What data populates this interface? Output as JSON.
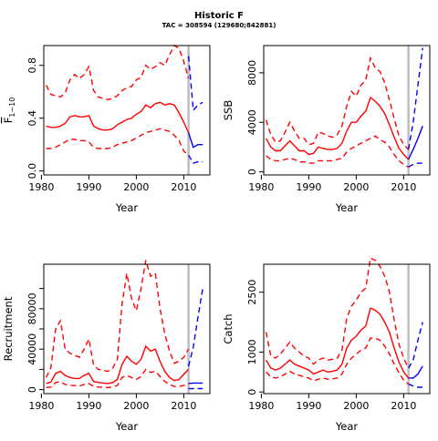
{
  "title": "Historic F",
  "subtitle": "TAC = 308594 (129680;842881)",
  "colors": {
    "historic": "#ff0000",
    "projection": "#0000ff",
    "marker": "#bebebe"
  },
  "chart_data": [
    {
      "type": "line",
      "ylabel": "F̄1–10",
      "ylabel_main": "F",
      "ylabel_sub": "1−10",
      "xlabel": "Year",
      "xlim": [
        1980.5,
        2015.5
      ],
      "ylim": [
        -0.03,
        0.95
      ],
      "xticks": [
        1980,
        1990,
        2000,
        2010
      ],
      "yticks": [
        0.0,
        0.4,
        0.8
      ],
      "ytick_labels": [
        "0.0",
        "0.4",
        "0.8"
      ],
      "marker_year": 2011,
      "historic": {
        "x": [
          1981,
          1982,
          1983,
          1984,
          1985,
          1986,
          1987,
          1988,
          1989,
          1990,
          1991,
          1992,
          1993,
          1994,
          1995,
          1996,
          1997,
          1998,
          1999,
          2000,
          2001,
          2002,
          2003,
          2004,
          2005,
          2006,
          2007,
          2008,
          2009,
          2010,
          2011
        ],
        "mid": [
          0.34,
          0.33,
          0.33,
          0.34,
          0.36,
          0.41,
          0.42,
          0.41,
          0.41,
          0.42,
          0.34,
          0.32,
          0.31,
          0.31,
          0.32,
          0.35,
          0.37,
          0.39,
          0.4,
          0.43,
          0.45,
          0.5,
          0.48,
          0.51,
          0.52,
          0.5,
          0.51,
          0.5,
          0.44,
          0.37,
          0.29
        ],
        "low": [
          0.17,
          0.17,
          0.18,
          0.2,
          0.22,
          0.24,
          0.24,
          0.23,
          0.23,
          0.22,
          0.18,
          0.17,
          0.17,
          0.17,
          0.18,
          0.2,
          0.21,
          0.22,
          0.23,
          0.25,
          0.27,
          0.29,
          0.3,
          0.31,
          0.32,
          0.31,
          0.3,
          0.27,
          0.23,
          0.15,
          0.12
        ],
        "high": [
          0.65,
          0.58,
          0.57,
          0.56,
          0.59,
          0.69,
          0.73,
          0.7,
          0.73,
          0.79,
          0.61,
          0.56,
          0.55,
          0.54,
          0.55,
          0.57,
          0.61,
          0.63,
          0.64,
          0.69,
          0.71,
          0.8,
          0.77,
          0.79,
          0.82,
          0.8,
          0.88,
          0.95,
          0.93,
          0.83,
          0.7
        ]
      },
      "projection": {
        "x": [
          2011,
          2012,
          2013,
          2014
        ],
        "mid": [
          0.29,
          0.18,
          0.2,
          0.2
        ],
        "low": [
          0.12,
          0.06,
          0.07,
          0.07
        ],
        "high": [
          0.87,
          0.46,
          0.5,
          0.52
        ]
      }
    },
    {
      "type": "line",
      "ylabel": "SSB",
      "xlabel": "Year",
      "xlim": [
        1980.5,
        2015.5
      ],
      "ylim": [
        -250,
        10200
      ],
      "xticks": [
        1980,
        1990,
        2000,
        2010
      ],
      "yticks": [
        0,
        4000,
        8000
      ],
      "ytick_labels": [
        "0",
        "4000",
        "8000"
      ],
      "marker_year": 2011,
      "historic": {
        "x": [
          1981,
          1982,
          1983,
          1984,
          1985,
          1986,
          1987,
          1988,
          1989,
          1990,
          1991,
          1992,
          1993,
          1994,
          1995,
          1996,
          1997,
          1998,
          1999,
          2000,
          2001,
          2002,
          2003,
          2004,
          2005,
          2006,
          2007,
          2008,
          2009,
          2010,
          2011
        ],
        "mid": [
          2700,
          2000,
          1700,
          1700,
          2100,
          2500,
          2100,
          1700,
          1700,
          1400,
          1500,
          2000,
          1900,
          1800,
          1800,
          1900,
          2300,
          3300,
          4000,
          4000,
          4500,
          4900,
          6000,
          5700,
          5300,
          4700,
          3800,
          2800,
          1900,
          1400,
          1000
        ],
        "low": [
          1300,
          1000,
          900,
          900,
          1000,
          1100,
          1000,
          800,
          800,
          700,
          700,
          900,
          900,
          900,
          900,
          1000,
          1100,
          1600,
          1900,
          2100,
          2300,
          2500,
          2700,
          2900,
          2600,
          2400,
          2000,
          1400,
          900,
          600,
          400
        ],
        "high": [
          4200,
          3000,
          2400,
          2500,
          3200,
          4000,
          3300,
          2700,
          2700,
          2200,
          2300,
          3200,
          3100,
          2900,
          2800,
          3000,
          3700,
          5300,
          6500,
          6100,
          7000,
          7400,
          9200,
          8400,
          8100,
          7200,
          5800,
          4300,
          2900,
          2200,
          1800
        ]
      },
      "projection": {
        "x": [
          2011,
          2012,
          2013,
          2014
        ],
        "mid": [
          1000,
          1800,
          2700,
          3700
        ],
        "low": [
          400,
          600,
          700,
          700
        ],
        "high": [
          1800,
          4000,
          7000,
          10000
        ]
      }
    },
    {
      "type": "line",
      "ylabel": "Recruitment",
      "xlabel": "Year",
      "xlim": [
        1980.5,
        2015.5
      ],
      "ylim": [
        -4000,
        124000
      ],
      "xticks": [
        1980,
        1990,
        2000,
        2010
      ],
      "yticks": [
        0,
        40000,
        80000
      ],
      "ytick_labels": [
        "0",
        "40000",
        "80000"
      ],
      "yticks_extra": [
        20000,
        60000,
        100000
      ],
      "marker_year": 2011,
      "historic": {
        "x": [
          1981,
          1982,
          1983,
          1984,
          1985,
          1986,
          1987,
          1988,
          1989,
          1990,
          1991,
          1992,
          1993,
          1994,
          1995,
          1996,
          1997,
          1998,
          1999,
          2000,
          2001,
          2002,
          2003,
          2004,
          2005,
          2006,
          2007,
          2008,
          2009,
          2010,
          2011
        ],
        "mid": [
          6000,
          7500,
          16000,
          18000,
          14000,
          12000,
          11000,
          11000,
          14000,
          16000,
          8000,
          7000,
          6500,
          6000,
          7000,
          10000,
          25000,
          33000,
          28000,
          25000,
          30000,
          43000,
          38000,
          40000,
          28000,
          18000,
          12000,
          9000,
          10000,
          15000,
          20000
        ],
        "low": [
          2000,
          2500,
          7000,
          8000,
          5000,
          4000,
          4000,
          3500,
          5000,
          6000,
          3000,
          2500,
          2200,
          2000,
          2500,
          4000,
          12000,
          14000,
          12000,
          10000,
          13000,
          20000,
          17000,
          18000,
          13000,
          8000,
          5000,
          3000,
          3000,
          4000,
          6000
        ],
        "high": [
          12000,
          22000,
          60000,
          68000,
          40000,
          36000,
          34000,
          32000,
          40000,
          50000,
          24000,
          20000,
          19000,
          18000,
          21000,
          30000,
          85000,
          115000,
          90000,
          78000,
          100000,
          128000,
          112000,
          115000,
          80000,
          55000,
          38000,
          26000,
          28000,
          32000,
          40000
        ]
      },
      "projection": {
        "x": [
          2011,
          2012,
          2013,
          2014
        ],
        "mid": [
          6000,
          6500,
          6500,
          6500
        ],
        "low": [
          1000,
          1000,
          1000,
          1000
        ],
        "high": [
          23000,
          42000,
          72000,
          100000
        ]
      }
    },
    {
      "type": "line",
      "ylabel": "Catch",
      "xlabel": "Year",
      "xlim": [
        1980.5,
        2015.5
      ],
      "ylim": [
        -40,
        3200
      ],
      "xticks": [
        1980,
        1990,
        2000,
        2010
      ],
      "yticks": [
        0,
        1000,
        2500
      ],
      "ytick_labels": [
        "0",
        "1000",
        "2500"
      ],
      "marker_year": 2011,
      "historic": {
        "x": [
          1981,
          1982,
          1983,
          1984,
          1985,
          1986,
          1987,
          1988,
          1989,
          1990,
          1991,
          1992,
          1993,
          1994,
          1995,
          1996,
          1997,
          1998,
          1999,
          2000,
          2001,
          2002,
          2003,
          2004,
          2005,
          2006,
          2007,
          2008,
          2009,
          2010,
          2011
        ],
        "mid": [
          800,
          600,
          550,
          600,
          700,
          800,
          700,
          650,
          600,
          550,
          450,
          500,
          550,
          500,
          520,
          550,
          700,
          1100,
          1300,
          1400,
          1550,
          1650,
          2100,
          2050,
          1950,
          1750,
          1500,
          1100,
          750,
          500,
          350
        ],
        "low": [
          500,
          380,
          350,
          380,
          450,
          520,
          450,
          420,
          380,
          350,
          280,
          320,
          350,
          320,
          330,
          350,
          450,
          700,
          850,
          950,
          1050,
          1100,
          1350,
          1350,
          1300,
          1150,
          950,
          700,
          480,
          300,
          200
        ],
        "high": [
          1500,
          900,
          850,
          950,
          1100,
          1250,
          1100,
          1000,
          900,
          850,
          700,
          800,
          850,
          800,
          820,
          850,
          1050,
          1850,
          2150,
          2300,
          2500,
          2600,
          3350,
          3300,
          3150,
          2900,
          2500,
          1800,
          1200,
          850,
          600
        ]
      },
      "projection": {
        "x": [
          2011,
          2012,
          2013,
          2014
        ],
        "mid": [
          350,
          350,
          450,
          650
        ],
        "low": [
          200,
          150,
          120,
          120
        ],
        "high": [
          600,
          800,
          1300,
          1750
        ]
      }
    }
  ]
}
